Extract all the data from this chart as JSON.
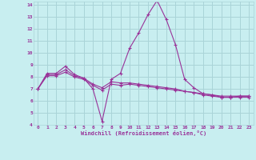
{
  "xlabel": "Windchill (Refroidissement éolien,°C)",
  "background_color": "#c8eef0",
  "grid_color": "#aad4d8",
  "line_color": "#993399",
  "xlim": [
    -0.5,
    23.5
  ],
  "ylim": [
    4,
    14.3
  ],
  "yticks": [
    4,
    5,
    6,
    7,
    8,
    9,
    10,
    11,
    12,
    13,
    14
  ],
  "xticks": [
    0,
    1,
    2,
    3,
    4,
    5,
    6,
    7,
    8,
    9,
    10,
    11,
    12,
    13,
    14,
    15,
    16,
    17,
    18,
    19,
    20,
    21,
    22,
    23
  ],
  "series": [
    {
      "x": [
        0,
        1,
        2,
        3,
        4,
        5,
        6,
        7,
        8,
        9,
        10,
        11,
        12,
        13,
        14,
        15,
        16,
        17,
        18,
        19,
        20,
        21,
        22,
        23
      ],
      "y": [
        7.0,
        8.3,
        8.3,
        8.9,
        8.2,
        7.9,
        7.0,
        4.3,
        7.8,
        8.3,
        10.4,
        11.7,
        13.2,
        14.4,
        12.8,
        10.7,
        7.8,
        7.1,
        6.6,
        6.5,
        6.3,
        6.3,
        6.4,
        6.4
      ]
    },
    {
      "x": [
        0,
        1,
        2,
        3,
        4,
        5,
        6,
        7,
        8,
        9,
        10,
        11,
        12,
        13,
        14,
        15,
        16,
        17,
        18,
        19,
        20,
        21,
        22,
        23
      ],
      "y": [
        7.0,
        8.2,
        8.2,
        8.6,
        8.1,
        7.9,
        7.4,
        7.1,
        7.6,
        7.5,
        7.5,
        7.4,
        7.3,
        7.2,
        7.1,
        7.0,
        6.8,
        6.7,
        6.6,
        6.5,
        6.4,
        6.4,
        6.4,
        6.4
      ]
    },
    {
      "x": [
        0,
        1,
        2,
        3,
        4,
        5,
        6,
        7,
        8,
        9,
        10,
        11,
        12,
        13,
        14,
        15,
        16,
        17,
        18,
        19,
        20,
        21,
        22,
        23
      ],
      "y": [
        7.0,
        8.1,
        8.1,
        8.4,
        8.0,
        7.8,
        7.3,
        6.9,
        7.4,
        7.3,
        7.4,
        7.3,
        7.2,
        7.1,
        7.0,
        6.9,
        6.8,
        6.7,
        6.5,
        6.4,
        6.3,
        6.3,
        6.3,
        6.3
      ]
    }
  ]
}
